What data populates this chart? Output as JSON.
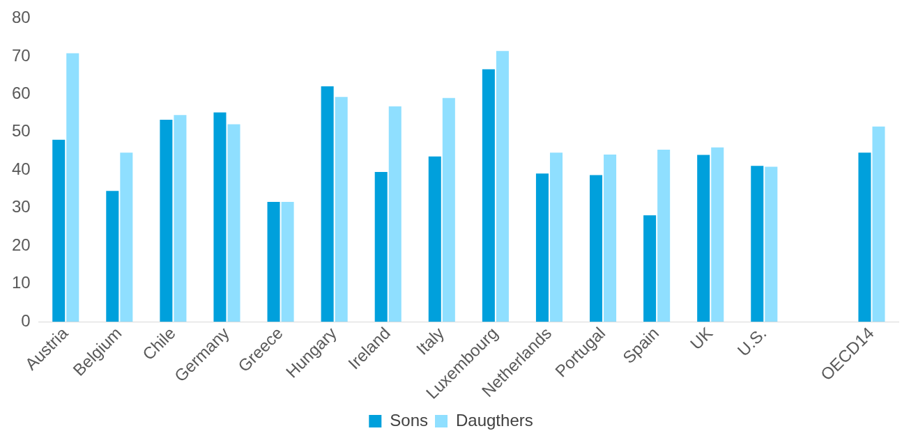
{
  "chart_data": {
    "type": "bar",
    "categories": [
      "Austria",
      "Belgium",
      "Chile",
      "Germany",
      "Greece",
      "Hungary",
      "Ireland",
      "Italy",
      "Luxembourg",
      "Netherlands",
      "Portugal",
      "Spain",
      "UK",
      "U.S.",
      null,
      "OECD14"
    ],
    "series": [
      {
        "name": "Sons",
        "color": "#00a0dc",
        "values": [
          48,
          34.5,
          53.3,
          55.2,
          31.6,
          62.1,
          39.5,
          43.6,
          66.6,
          39.1,
          38.7,
          28.1,
          44,
          41.1,
          null,
          44.6
        ]
      },
      {
        "name": "Daugthers",
        "color": "#8fdfff",
        "values": [
          70.8,
          44.6,
          54.5,
          52.1,
          31.6,
          59.3,
          56.8,
          59,
          71.4,
          44.6,
          44.1,
          45.4,
          46,
          40.9,
          null,
          51.5
        ]
      }
    ],
    "ylim": [
      0,
      80
    ],
    "yticks": [
      0,
      10,
      20,
      30,
      40,
      50,
      60,
      70,
      80
    ],
    "grid": false,
    "legend": "bottom"
  }
}
